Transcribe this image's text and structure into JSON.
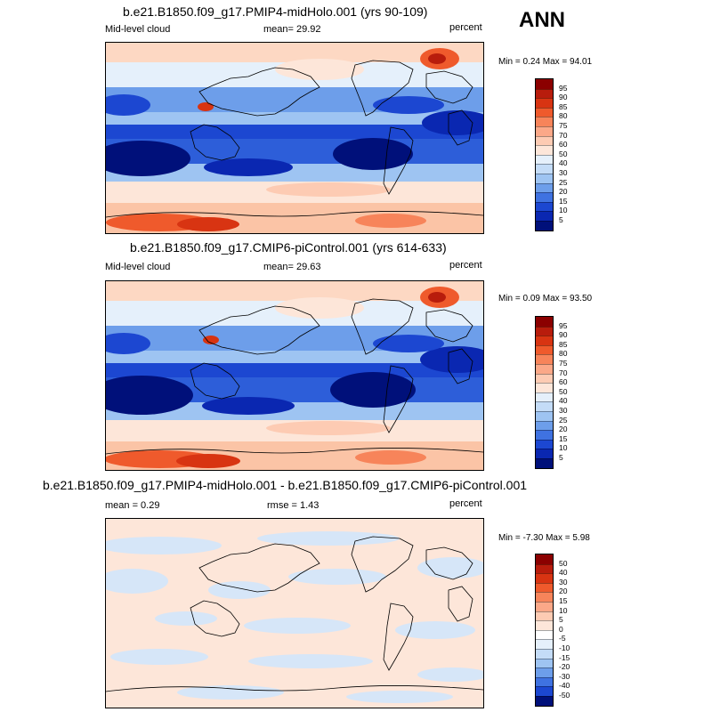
{
  "season": "ANN",
  "panels": [
    {
      "title": "b.e21.B1850.f09_g17.PMIP4-midHolo.001 (yrs 90-109)",
      "left_label": "Mid-level cloud",
      "center_label": "mean=  29.92",
      "units": "percent",
      "minmax": "Min =   0.24 Max =  94.01",
      "colorbar_labels": [
        "95",
        "90",
        "85",
        "80",
        "75",
        "70",
        "60",
        "50",
        "40",
        "30",
        "25",
        "20",
        "15",
        "10",
        "5"
      ],
      "colorbar_colors": [
        "#8b0000",
        "#b81c0c",
        "#d83412",
        "#ef5a2c",
        "#f7845a",
        "#fba888",
        "#fdcbb3",
        "#fde6d9",
        "#e5f0fb",
        "#c4dcf7",
        "#9ec4f2",
        "#6d9eea",
        "#3f72e1",
        "#1c47d1",
        "#0a27b1",
        "#00107a"
      ]
    },
    {
      "title": "b.e21.B1850.f09_g17.CMIP6-piControl.001 (yrs 614-633)",
      "left_label": "Mid-level cloud",
      "center_label": "mean=  29.63",
      "units": "percent",
      "minmax": "Min =   0.09 Max =  93.50",
      "colorbar_labels": [
        "95",
        "90",
        "85",
        "80",
        "75",
        "70",
        "60",
        "50",
        "40",
        "30",
        "25",
        "20",
        "15",
        "10",
        "5"
      ],
      "colorbar_colors": [
        "#8b0000",
        "#b81c0c",
        "#d83412",
        "#ef5a2c",
        "#f7845a",
        "#fba888",
        "#fdcbb3",
        "#fde6d9",
        "#e5f0fb",
        "#c4dcf7",
        "#9ec4f2",
        "#6d9eea",
        "#3f72e1",
        "#1c47d1",
        "#0a27b1",
        "#00107a"
      ]
    },
    {
      "title": "b.e21.B1850.f09_g17.PMIP4-midHolo.001 - b.e21.B1850.f09_g17.CMIP6-piControl.001",
      "left_label": "mean =   0.29",
      "center_label": "rmse =   1.43",
      "units": "percent",
      "minmax": "Min =  -7.30 Max =   5.98",
      "colorbar_labels": [
        "50",
        "40",
        "30",
        "20",
        "15",
        "10",
        "5",
        "0",
        "-5",
        "-10",
        "-15",
        "-20",
        "-30",
        "-40",
        "-50"
      ],
      "colorbar_colors": [
        "#8b0000",
        "#b81c0c",
        "#d83412",
        "#ef5a2c",
        "#f7845a",
        "#fba888",
        "#fdcbb3",
        "#fde6d9",
        "#ffffff",
        "#e5f0fb",
        "#c4dcf7",
        "#9ec4f2",
        "#6d9eea",
        "#3f72e1",
        "#1c47d1",
        "#00107a"
      ]
    }
  ]
}
